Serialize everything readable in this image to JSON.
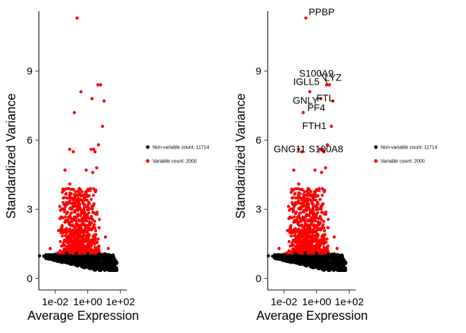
{
  "chart_data": [
    {
      "type": "scatter",
      "title": "",
      "xlabel": "Average Expression",
      "ylabel": "Standardized Variance",
      "x_scale": "log10",
      "xlim": [
        0.001,
        250
      ],
      "ylim": [
        -0.5,
        11.6
      ],
      "x_ticks": [
        0.01,
        1,
        100
      ],
      "x_tick_labels": [
        "1e-02",
        "1e+00",
        "1e+02"
      ],
      "y_ticks": [
        0,
        3,
        6,
        9
      ],
      "y_tick_labels": [
        "0",
        "3",
        "6",
        "9"
      ],
      "grid": false,
      "legend_position": "right",
      "series": [
        {
          "name": "Non-variable count: 11714",
          "color": "#000000",
          "points": [
            [
              0.0011,
              0.98
            ],
            [
              0.002,
              0.97
            ],
            [
              0.003,
              0.95
            ],
            [
              0.005,
              0.93
            ],
            [
              0.008,
              0.9
            ],
            [
              0.012,
              0.87
            ],
            [
              0.02,
              0.84
            ],
            [
              0.03,
              0.82
            ],
            [
              0.05,
              0.78
            ],
            [
              0.08,
              0.75
            ],
            [
              0.12,
              0.72
            ],
            [
              0.2,
              0.7
            ],
            [
              0.3,
              0.67
            ],
            [
              0.5,
              0.65
            ],
            [
              0.8,
              0.62
            ],
            [
              1.2,
              0.6
            ],
            [
              2,
              0.58
            ],
            [
              3,
              0.57
            ],
            [
              5,
              0.55
            ],
            [
              8,
              0.6
            ],
            [
              12,
              0.65
            ],
            [
              20,
              0.7
            ],
            [
              30,
              0.8
            ],
            [
              0.01,
              1.05
            ],
            [
              0.05,
              1.1
            ],
            [
              0.2,
              1.12
            ],
            [
              1,
              1.1
            ],
            [
              5,
              1.05
            ],
            [
              15,
              0.9
            ],
            [
              40,
              0.85
            ]
          ]
        },
        {
          "name": "Variable count: 2000",
          "color": "#ff0000",
          "points": [
            [
              0.22,
              11.3
            ],
            [
              1.8,
              7.8
            ],
            [
              0.38,
              8.1
            ],
            [
              4.2,
              8.4
            ],
            [
              6.1,
              8.4
            ],
            [
              0.15,
              7.2
            ],
            [
              10,
              7.7
            ],
            [
              8,
              6.6
            ],
            [
              4.5,
              5.8
            ],
            [
              2.3,
              5.6
            ],
            [
              0.078,
              5.6
            ],
            [
              0.13,
              5.5
            ],
            [
              1.6,
              5.6
            ],
            [
              2.8,
              5.5
            ],
            [
              3.5,
              4.8
            ],
            [
              2,
              4.6
            ],
            [
              0.8,
              4.7
            ],
            [
              0.04,
              4.7
            ],
            [
              0.08,
              4.1
            ],
            [
              0.3,
              3.9
            ],
            [
              0.6,
              3.5
            ],
            [
              1.2,
              3.0
            ],
            [
              0.02,
              2.6
            ],
            [
              0.005,
              1.3
            ],
            [
              12,
              1.8
            ],
            [
              18,
              1.3
            ],
            [
              5,
              2.2
            ],
            [
              3,
              2.8
            ],
            [
              0.15,
              2.9
            ],
            [
              0.45,
              2.6
            ]
          ]
        }
      ],
      "labels": []
    },
    {
      "type": "scatter",
      "title": "",
      "xlabel": "Average Expression",
      "ylabel": "Standardized Variance",
      "x_scale": "log10",
      "xlim": [
        0.001,
        250
      ],
      "ylim": [
        -0.5,
        11.6
      ],
      "x_ticks": [
        0.01,
        1,
        100
      ],
      "x_tick_labels": [
        "1e-02",
        "1e+00",
        "1e+02"
      ],
      "y_ticks": [
        0,
        3,
        6,
        9
      ],
      "y_tick_labels": [
        "0",
        "3",
        "6",
        "9"
      ],
      "grid": false,
      "legend_position": "right",
      "series": [
        {
          "name": "Non-variable count: 11714",
          "color": "#000000",
          "points": [
            [
              0.0011,
              0.98
            ],
            [
              0.002,
              0.97
            ],
            [
              0.003,
              0.95
            ],
            [
              0.005,
              0.93
            ],
            [
              0.008,
              0.9
            ],
            [
              0.012,
              0.87
            ],
            [
              0.02,
              0.84
            ],
            [
              0.03,
              0.82
            ],
            [
              0.05,
              0.78
            ],
            [
              0.08,
              0.75
            ],
            [
              0.12,
              0.72
            ],
            [
              0.2,
              0.7
            ],
            [
              0.3,
              0.67
            ],
            [
              0.5,
              0.65
            ],
            [
              0.8,
              0.62
            ],
            [
              1.2,
              0.6
            ],
            [
              2,
              0.58
            ],
            [
              3,
              0.57
            ],
            [
              5,
              0.55
            ],
            [
              8,
              0.6
            ],
            [
              12,
              0.65
            ],
            [
              20,
              0.7
            ],
            [
              30,
              0.8
            ],
            [
              0.01,
              1.05
            ],
            [
              0.05,
              1.1
            ],
            [
              0.2,
              1.12
            ],
            [
              1,
              1.1
            ],
            [
              5,
              1.05
            ],
            [
              15,
              0.9
            ],
            [
              40,
              0.85
            ]
          ]
        },
        {
          "name": "Variable count: 2000",
          "color": "#ff0000",
          "points": [
            [
              0.22,
              11.3
            ],
            [
              1.8,
              7.8
            ],
            [
              0.38,
              8.1
            ],
            [
              4.2,
              8.4
            ],
            [
              6.1,
              8.4
            ],
            [
              0.15,
              7.2
            ],
            [
              10,
              7.7
            ],
            [
              8,
              6.6
            ],
            [
              4.5,
              5.8
            ],
            [
              2.3,
              5.6
            ],
            [
              0.078,
              5.6
            ],
            [
              0.13,
              5.5
            ],
            [
              1.6,
              5.6
            ],
            [
              2.8,
              5.5
            ],
            [
              3.5,
              4.8
            ],
            [
              2,
              4.6
            ],
            [
              0.8,
              4.7
            ],
            [
              0.04,
              4.7
            ],
            [
              0.08,
              4.1
            ],
            [
              0.3,
              3.9
            ],
            [
              0.6,
              3.5
            ],
            [
              1.2,
              3.0
            ],
            [
              0.02,
              2.6
            ],
            [
              0.005,
              1.3
            ],
            [
              12,
              1.8
            ],
            [
              18,
              1.3
            ],
            [
              5,
              2.2
            ],
            [
              3,
              2.8
            ],
            [
              0.15,
              2.9
            ],
            [
              0.45,
              2.6
            ]
          ]
        }
      ],
      "labels": [
        {
          "text": "PPBP",
          "x": 0.22,
          "y": 11.3
        },
        {
          "text": "S100A9",
          "x": 4.2,
          "y": 8.4
        },
        {
          "text": "LYZ",
          "x": 6.1,
          "y": 8.4
        },
        {
          "text": "IGLL5",
          "x": 0.38,
          "y": 8.1
        },
        {
          "text": "GNLY",
          "x": 10,
          "y": 7.7
        },
        {
          "text": "FTL",
          "x": 1.8,
          "y": 7.8
        },
        {
          "text": "PF4",
          "x": 0.15,
          "y": 7.2
        },
        {
          "text": "FTH1",
          "x": 8,
          "y": 6.6
        },
        {
          "text": "GNG11",
          "x": 0.078,
          "y": 5.6
        },
        {
          "text": "S100A8",
          "x": 2.3,
          "y": 5.6
        }
      ]
    }
  ]
}
